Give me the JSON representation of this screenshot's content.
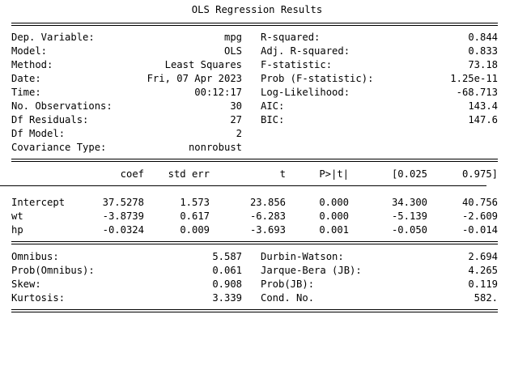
{
  "title": "OLS Regression Results",
  "summary_rows": [
    {
      "l_label": "Dep. Variable:",
      "l_value": "mpg",
      "r_label": "R-squared:",
      "r_value": "0.844"
    },
    {
      "l_label": "Model:",
      "l_value": "OLS",
      "r_label": "Adj. R-squared:",
      "r_value": "0.833"
    },
    {
      "l_label": "Method:",
      "l_value": "Least Squares",
      "r_label": "F-statistic:",
      "r_value": "73.18"
    },
    {
      "l_label": "Date:",
      "l_value": "Fri, 07 Apr 2023",
      "r_label": "Prob (F-statistic):",
      "r_value": "1.25e-11"
    },
    {
      "l_label": "Time:",
      "l_value": "00:12:17",
      "r_label": "Log-Likelihood:",
      "r_value": "-68.713"
    },
    {
      "l_label": "No. Observations:",
      "l_value": "30",
      "r_label": "AIC:",
      "r_value": "143.4"
    },
    {
      "l_label": "Df Residuals:",
      "l_value": "27",
      "r_label": "BIC:",
      "r_value": "147.6"
    },
    {
      "l_label": "Df Model:",
      "l_value": "2",
      "r_label": "",
      "r_value": ""
    },
    {
      "l_label": "Covariance Type:",
      "l_value": "nonrobust",
      "r_label": "",
      "r_value": ""
    }
  ],
  "coef_table": {
    "headers": [
      "",
      "coef",
      "std err",
      "t",
      "P>|t|",
      "[0.025",
      "0.975]"
    ],
    "rows": [
      [
        "Intercept",
        "37.5278",
        "1.573",
        "23.856",
        "0.000",
        "34.300",
        "40.756"
      ],
      [
        "wt",
        "-3.8739",
        "0.617",
        "-6.283",
        "0.000",
        "-5.139",
        "-2.609"
      ],
      [
        "hp",
        "-0.0324",
        "0.009",
        "-3.693",
        "0.001",
        "-0.050",
        "-0.014"
      ]
    ]
  },
  "diagnostics_rows": [
    {
      "l_label": "Omnibus:",
      "l_value": "5.587",
      "r_label": "Durbin-Watson:",
      "r_value": "2.694"
    },
    {
      "l_label": "Prob(Omnibus):",
      "l_value": "0.061",
      "r_label": "Jarque-Bera (JB):",
      "r_value": "4.265"
    },
    {
      "l_label": "Skew:",
      "l_value": "0.908",
      "r_label": "Prob(JB):",
      "r_value": "0.119"
    },
    {
      "l_label": "Kurtosis:",
      "l_value": "3.339",
      "r_label": "Cond. No.",
      "r_value": "582."
    }
  ]
}
